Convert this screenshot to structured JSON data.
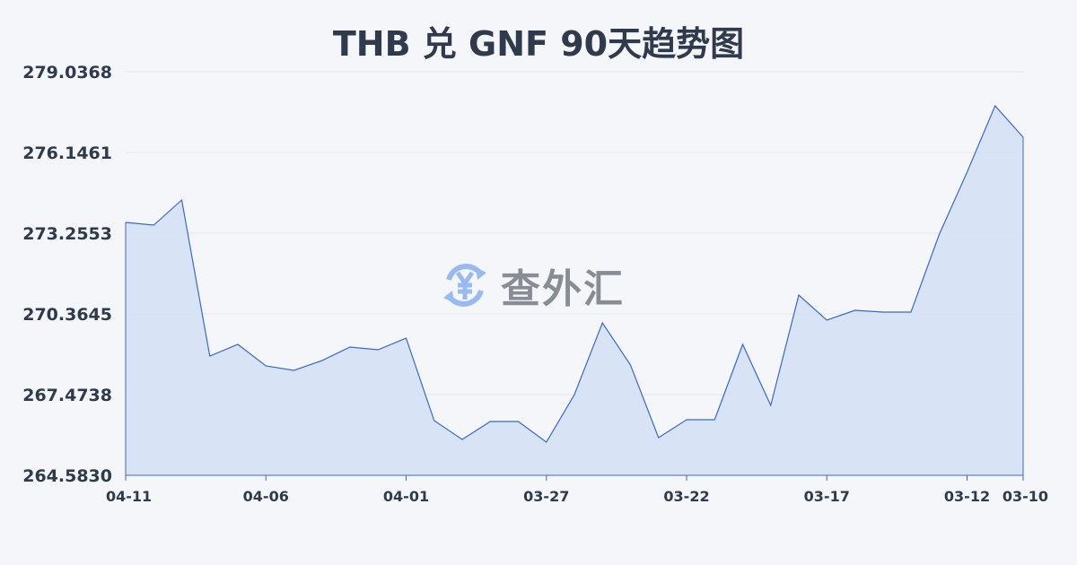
{
  "title": "THB 兑 GNF 90天趋势图",
  "watermark": {
    "text": "查外汇",
    "icon": "yen-exchange-icon"
  },
  "colors": {
    "line": "#3a68d0",
    "fill": "#d6e1f5",
    "grid": "#e3e6eb",
    "text": "#2f3a4c"
  },
  "chart_data": {
    "type": "area",
    "title": "THB 兑 GNF 90天趋势图",
    "xlabel": "",
    "ylabel": "",
    "ylim": [
      264.583,
      279.0368
    ],
    "yticks": [
      "264.5830",
      "267.4738",
      "270.3645",
      "273.2553",
      "276.1461",
      "279.0368"
    ],
    "xticks": [
      "04-11",
      "04-06",
      "04-01",
      "03-27",
      "03-22",
      "03-17",
      "03-12",
      "03-10"
    ],
    "grid": true,
    "x": [
      "04-11",
      "04-10",
      "04-09",
      "04-08",
      "04-07",
      "04-06",
      "04-05",
      "04-04",
      "04-03",
      "04-02",
      "04-01",
      "03-31",
      "03-30",
      "03-29",
      "03-28",
      "03-27",
      "03-26",
      "03-25",
      "03-24",
      "03-23",
      "03-22",
      "03-21",
      "03-20",
      "03-19",
      "03-18",
      "03-17",
      "03-16",
      "03-15",
      "03-14",
      "03-13",
      "03-12",
      "03-11",
      "03-10"
    ],
    "values": [
      273.641,
      273.544,
      274.444,
      268.855,
      269.273,
      268.502,
      268.341,
      268.694,
      269.176,
      269.08,
      269.497,
      266.542,
      265.868,
      266.51,
      266.51,
      265.771,
      267.474,
      270.043,
      268.534,
      265.932,
      266.574,
      266.574,
      269.273,
      267.088,
      271.039,
      270.14,
      270.493,
      270.429,
      270.429,
      273.191,
      275.44,
      277.816,
      276.692
    ]
  }
}
